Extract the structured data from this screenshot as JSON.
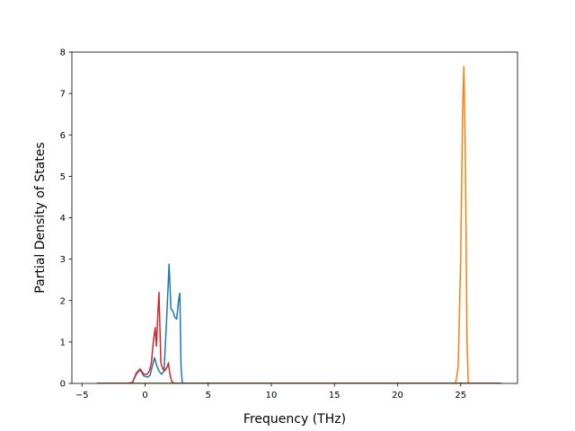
{
  "chart_data": {
    "type": "line",
    "title": "",
    "xlabel": "Frequency (THz)",
    "ylabel": "Partial Density of States",
    "xlim": [
      -5.8,
      29.5
    ],
    "ylim": [
      0,
      8
    ],
    "xticks": [
      -5,
      0,
      5,
      10,
      15,
      20,
      25
    ],
    "yticks": [
      0,
      1,
      2,
      3,
      4,
      5,
      6,
      7,
      8
    ],
    "grid": false,
    "legend": "none",
    "series": [
      {
        "color": "#1f77b4",
        "points": [
          [
            -3.8,
            0
          ],
          [
            -1.5,
            0
          ],
          [
            -1.0,
            0.02
          ],
          [
            -0.7,
            0.22
          ],
          [
            -0.4,
            0.33
          ],
          [
            -0.1,
            0.18
          ],
          [
            0.2,
            0.15
          ],
          [
            0.4,
            0.2
          ],
          [
            0.6,
            0.45
          ],
          [
            0.75,
            0.62
          ],
          [
            0.9,
            0.45
          ],
          [
            1.1,
            0.3
          ],
          [
            1.3,
            0.22
          ],
          [
            1.5,
            0.3
          ],
          [
            1.7,
            1.5
          ],
          [
            1.9,
            2.88
          ],
          [
            2.05,
            1.8
          ],
          [
            2.2,
            1.75
          ],
          [
            2.35,
            1.6
          ],
          [
            2.5,
            1.55
          ],
          [
            2.65,
            2.0
          ],
          [
            2.75,
            2.18
          ],
          [
            2.85,
            0.4
          ],
          [
            2.95,
            0
          ],
          [
            28.2,
            0
          ]
        ]
      },
      {
        "color": "#ff7f0e",
        "points": [
          [
            -3.8,
            0
          ],
          [
            24.6,
            0
          ],
          [
            24.8,
            0.4
          ],
          [
            25.0,
            3.0
          ],
          [
            25.15,
            6.5
          ],
          [
            25.25,
            7.65
          ],
          [
            25.35,
            6.0
          ],
          [
            25.5,
            1.0
          ],
          [
            25.6,
            0
          ],
          [
            28.2,
            0
          ]
        ]
      },
      {
        "color": "#2ca02c",
        "points": [
          [
            -3.8,
            0
          ],
          [
            28.2,
            0
          ]
        ]
      },
      {
        "color": "#d62728",
        "points": [
          [
            -3.8,
            0
          ],
          [
            -1.5,
            0
          ],
          [
            -1.0,
            0.02
          ],
          [
            -0.7,
            0.25
          ],
          [
            -0.4,
            0.35
          ],
          [
            -0.1,
            0.22
          ],
          [
            0.15,
            0.22
          ],
          [
            0.35,
            0.3
          ],
          [
            0.5,
            0.5
          ],
          [
            0.65,
            1.0
          ],
          [
            0.8,
            1.35
          ],
          [
            0.9,
            0.9
          ],
          [
            1.0,
            1.6
          ],
          [
            1.1,
            2.2
          ],
          [
            1.25,
            0.5
          ],
          [
            1.4,
            0.35
          ],
          [
            1.55,
            0.3
          ],
          [
            1.75,
            0.4
          ],
          [
            1.85,
            0.5
          ],
          [
            1.95,
            0.25
          ],
          [
            2.1,
            0.05
          ],
          [
            2.3,
            0
          ],
          [
            28.2,
            0
          ]
        ]
      }
    ]
  }
}
